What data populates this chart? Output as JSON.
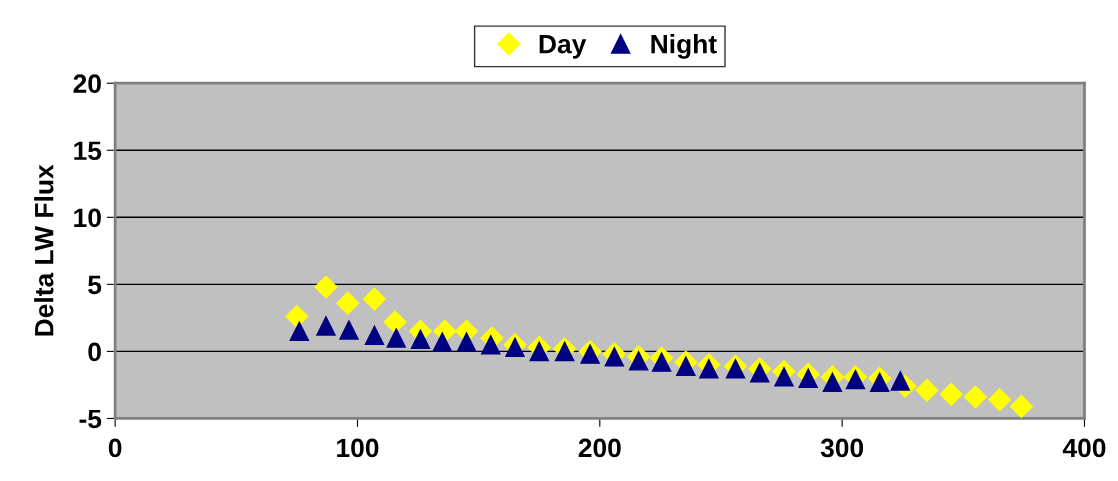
{
  "chart_data": {
    "type": "scatter",
    "ylabel": "Delta LW Flux",
    "xlim": [
      0,
      400
    ],
    "xticks": [
      0,
      100,
      200,
      300,
      400
    ],
    "ylim": [
      -5,
      20
    ],
    "yticks": [
      -5,
      0,
      5,
      10,
      15,
      20
    ],
    "grid": "y",
    "legend": "top",
    "series": [
      {
        "name": "Day",
        "color": "#ffff00",
        "marker": "diamond",
        "x": [
          75,
          87,
          96,
          107,
          115.5,
          126,
          136,
          145,
          155.5,
          165,
          175,
          185.5,
          196,
          206,
          216,
          225.5,
          235.5,
          245,
          256,
          266,
          276,
          286,
          296,
          305.5,
          315.5,
          326,
          335,
          345,
          355,
          365,
          374
        ],
        "values": [
          2.6,
          4.8,
          3.6,
          3.9,
          2.2,
          1.5,
          1.5,
          1.5,
          1.0,
          0.5,
          0.3,
          0.2,
          0.0,
          -0.2,
          -0.4,
          -0.5,
          -0.8,
          -1.0,
          -1.1,
          -1.3,
          -1.5,
          -1.7,
          -1.9,
          -1.9,
          -2.0,
          -2.6,
          -2.9,
          -3.2,
          -3.4,
          -3.6,
          -4.1
        ]
      },
      {
        "name": "Night",
        "color": "#000080",
        "marker": "triangle",
        "x": [
          76,
          87,
          96.5,
          107,
          116,
          126,
          135,
          145,
          155,
          165,
          175,
          185.5,
          196,
          206,
          216,
          225.5,
          235.5,
          245,
          256,
          266,
          276,
          286,
          296,
          305.5,
          315.5,
          324
        ],
        "values": [
          1.5,
          1.9,
          1.6,
          1.2,
          1.0,
          0.9,
          0.7,
          0.7,
          0.5,
          0.3,
          0.0,
          0.0,
          -0.2,
          -0.4,
          -0.7,
          -0.8,
          -1.1,
          -1.3,
          -1.3,
          -1.6,
          -1.9,
          -2.0,
          -2.3,
          -2.1,
          -2.3,
          -2.2
        ]
      }
    ]
  }
}
